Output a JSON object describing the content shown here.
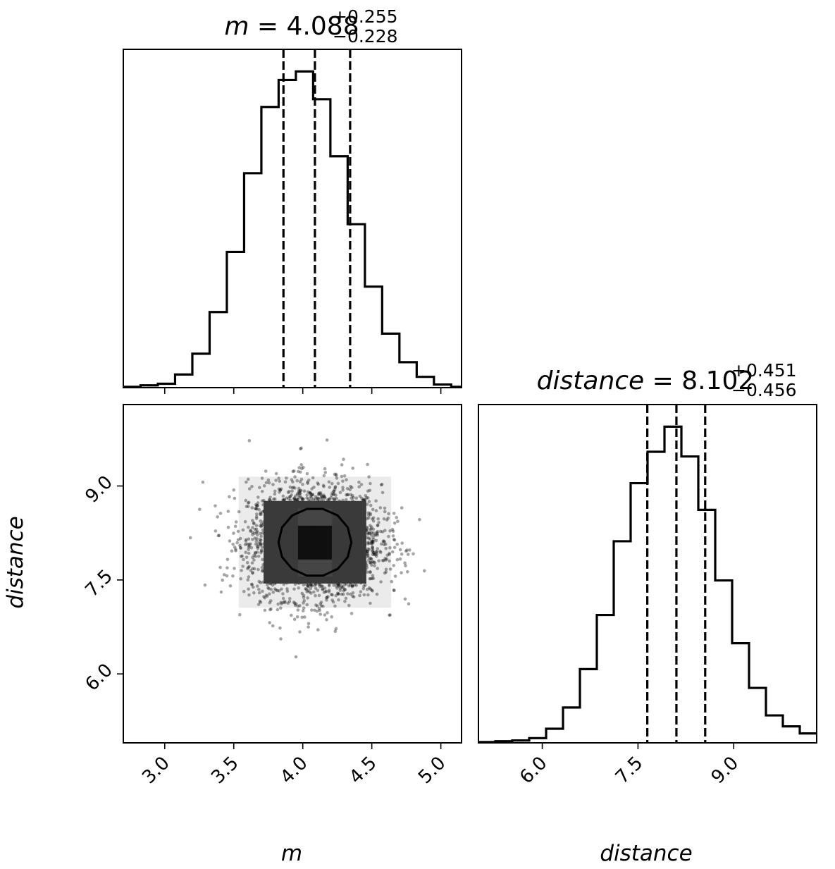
{
  "chart_data": [
    {
      "type": "histogram",
      "parameter": "m",
      "title": {
        "name": "m",
        "median": "4.088",
        "plus": "+0.255",
        "minus": "−0.228"
      },
      "xlim": [
        2.7,
        5.15
      ],
      "xticks": [
        "3.0",
        "3.5",
        "4.0",
        "4.5",
        "5.0"
      ],
      "xlabel": "m",
      "quantiles": [
        3.86,
        4.088,
        4.343
      ],
      "bins": [
        2.7,
        2.825,
        2.95,
        3.075,
        3.2,
        3.325,
        3.45,
        3.575,
        3.7,
        3.825,
        3.95,
        4.075,
        4.2,
        4.325,
        4.45,
        4.575,
        4.7,
        4.825,
        4.95,
        5.075,
        5.2
      ],
      "counts": [
        1,
        3,
        5,
        17,
        44,
        98,
        176,
        278,
        364,
        399,
        410,
        374,
        300,
        212,
        131,
        70,
        33,
        14,
        4,
        1
      ]
    },
    {
      "type": "histogram",
      "parameter": "distance",
      "title": {
        "name": "distance",
        "median": "8.102",
        "plus": "+0.451",
        "minus": "−0.456"
      },
      "xlim": [
        5.0,
        10.3
      ],
      "xticks": [
        "6.0",
        "7.5",
        "9.0"
      ],
      "xlabel": "distance",
      "quantiles": [
        7.646,
        8.102,
        8.553
      ],
      "bins": [
        5.0,
        5.265,
        5.53,
        5.795,
        6.06,
        6.325,
        6.59,
        6.855,
        7.12,
        7.385,
        7.65,
        7.915,
        8.18,
        8.445,
        8.71,
        8.975,
        9.24,
        9.505,
        9.77,
        10.035,
        10.3
      ],
      "counts": [
        1,
        2,
        3,
        6,
        18,
        45,
        94,
        163,
        257,
        331,
        371,
        403,
        365,
        297,
        207,
        127,
        70,
        35,
        21,
        12
      ]
    },
    {
      "type": "heatmap",
      "x_param": "m",
      "y_param": "distance",
      "xlim": [
        2.7,
        5.15
      ],
      "ylim": [
        4.9,
        10.3
      ],
      "yticks": [
        "6.0",
        "7.5",
        "9.0"
      ],
      "ylabel": "distance",
      "center": [
        4.088,
        8.102
      ],
      "sigma": [
        0.24,
        0.455
      ],
      "colors": {
        "line": "#000000",
        "density": "#000000",
        "background": "#ffffff"
      }
    }
  ]
}
